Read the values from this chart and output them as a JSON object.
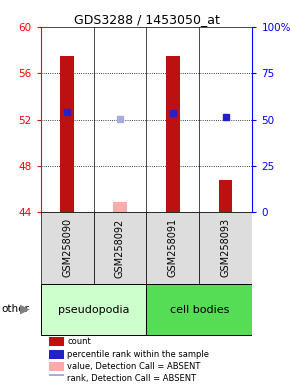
{
  "title": "GDS3288 / 1453050_at",
  "samples": [
    "GSM258090",
    "GSM258092",
    "GSM258091",
    "GSM258093"
  ],
  "groups": [
    "pseudopodia",
    "pseudopodia",
    "cell bodies",
    "cell bodies"
  ],
  "ylim_left": [
    44,
    60
  ],
  "ylim_right": [
    0,
    100
  ],
  "yticks_left": [
    44,
    48,
    52,
    56,
    60
  ],
  "yticks_right": [
    0,
    25,
    50,
    75,
    100
  ],
  "ytick_labels_left": [
    "44",
    "48",
    "52",
    "56",
    "60"
  ],
  "ytick_labels_right": [
    "0",
    "25",
    "50",
    "75",
    "100%"
  ],
  "bar_bottom": 44,
  "count_values": [
    57.5,
    44.9,
    57.5,
    46.8
  ],
  "count_colors": [
    "#bb1111",
    "#ffaaaa",
    "#bb1111",
    "#bb1111"
  ],
  "rank_values": [
    52.65,
    52.05,
    52.55,
    52.2
  ],
  "rank_colors": [
    "#2222cc",
    "#aaaadd",
    "#2222cc",
    "#2222cc"
  ],
  "bg_main": "#ffffff",
  "bg_pseudopodia": "#ccffcc",
  "bg_cellbodies": "#55dd55",
  "sample_box_color": "#dddddd",
  "legend_items": [
    {
      "color": "#bb1111",
      "label": "count"
    },
    {
      "color": "#2222cc",
      "label": "percentile rank within the sample"
    },
    {
      "color": "#ffaaaa",
      "label": "value, Detection Call = ABSENT"
    },
    {
      "color": "#aaaadd",
      "label": "rank, Detection Call = ABSENT"
    }
  ]
}
